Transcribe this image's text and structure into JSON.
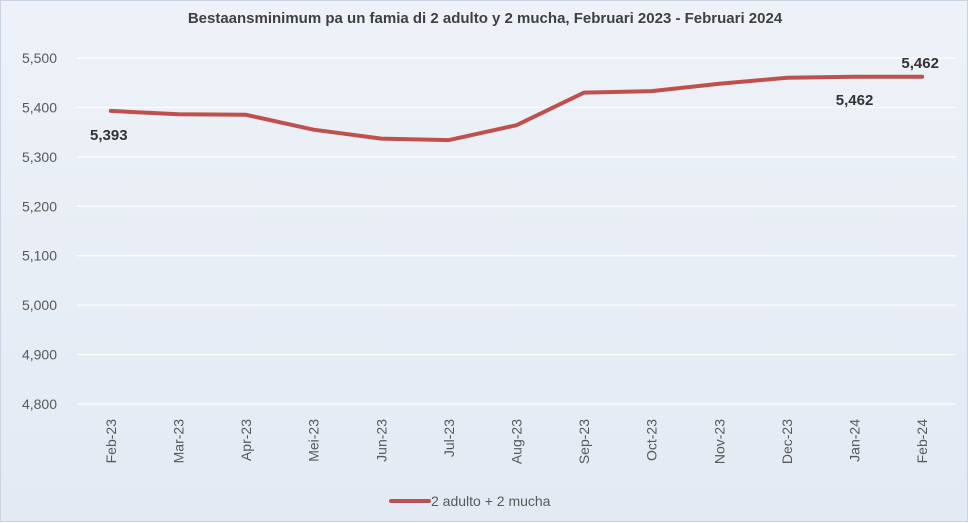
{
  "chart_data": {
    "type": "line",
    "title": "Bestaansminimum pa un famia di 2 adulto y 2 mucha, Februari 2023 - Februari 2024",
    "xlabel": "",
    "ylabel": "",
    "categories": [
      "Feb-23",
      "Mar-23",
      "Apr-23",
      "Mei-23",
      "Jun-23",
      "Jul-23",
      "Aug-23",
      "Sep-23",
      "Oct-23",
      "Nov-23",
      "Dec-23",
      "Jan-24",
      "Feb-24"
    ],
    "series": [
      {
        "name": "2 adulto  + 2 mucha",
        "color": "#c0504d",
        "values": [
          5393,
          5386,
          5385,
          5355,
          5337,
          5334,
          5364,
          5430,
          5433,
          5448,
          5460,
          5462,
          5462
        ]
      }
    ],
    "ylim": [
      4800,
      5500
    ],
    "yticks": [
      4800,
      4900,
      5000,
      5100,
      5200,
      5300,
      5400,
      5500
    ],
    "ytick_labels": [
      "4,800",
      "4,900",
      "5,000",
      "5,100",
      "5,200",
      "5,300",
      "5,400",
      "5,500"
    ],
    "data_labels": [
      {
        "index": 0,
        "text": "5,393"
      },
      {
        "index": 11,
        "text": "5,462"
      },
      {
        "index": 12,
        "text": "5,462"
      }
    ],
    "grid": true,
    "legend_position": "bottom"
  },
  "colors": {
    "background": "#e8eef6",
    "gridline": "#ffffff",
    "line": "#c0504d",
    "text": "#595959"
  }
}
